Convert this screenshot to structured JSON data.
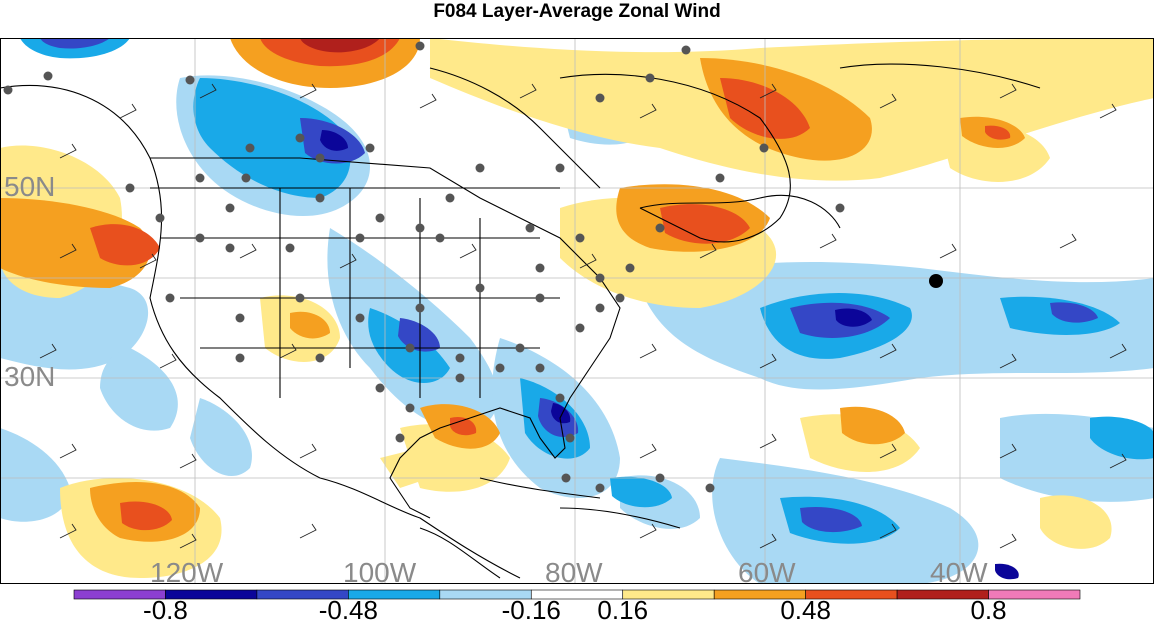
{
  "title": "F084 Layer-Average Zonal Wind",
  "map": {
    "lat_labels": [
      "50N",
      "30N"
    ],
    "lon_labels": [
      "120W",
      "100W",
      "80W",
      "60W",
      "40W"
    ]
  },
  "colorbar": {
    "colors": [
      "#8c3fd1",
      "#0b0599",
      "#3447c6",
      "#19a9e8",
      "#a9d9f4",
      "#ffffff",
      "#ffe98a",
      "#f5a020",
      "#e8501e",
      "#b0201c",
      "#f07ab8"
    ],
    "labels": [
      "-0.8",
      "-0.48",
      "-0.16",
      "0.16",
      "0.48",
      "0.8"
    ]
  },
  "palette": {
    "neg_strong": "#0b0599",
    "neg_med": "#3447c6",
    "neg_light": "#19a9e8",
    "neg_pale": "#a9d9f4",
    "pos_pale": "#ffe98a",
    "pos_med": "#f5a020",
    "pos_strong": "#e8501e",
    "pos_max": "#b0201c",
    "station": "#555555",
    "marker": "#000000"
  }
}
